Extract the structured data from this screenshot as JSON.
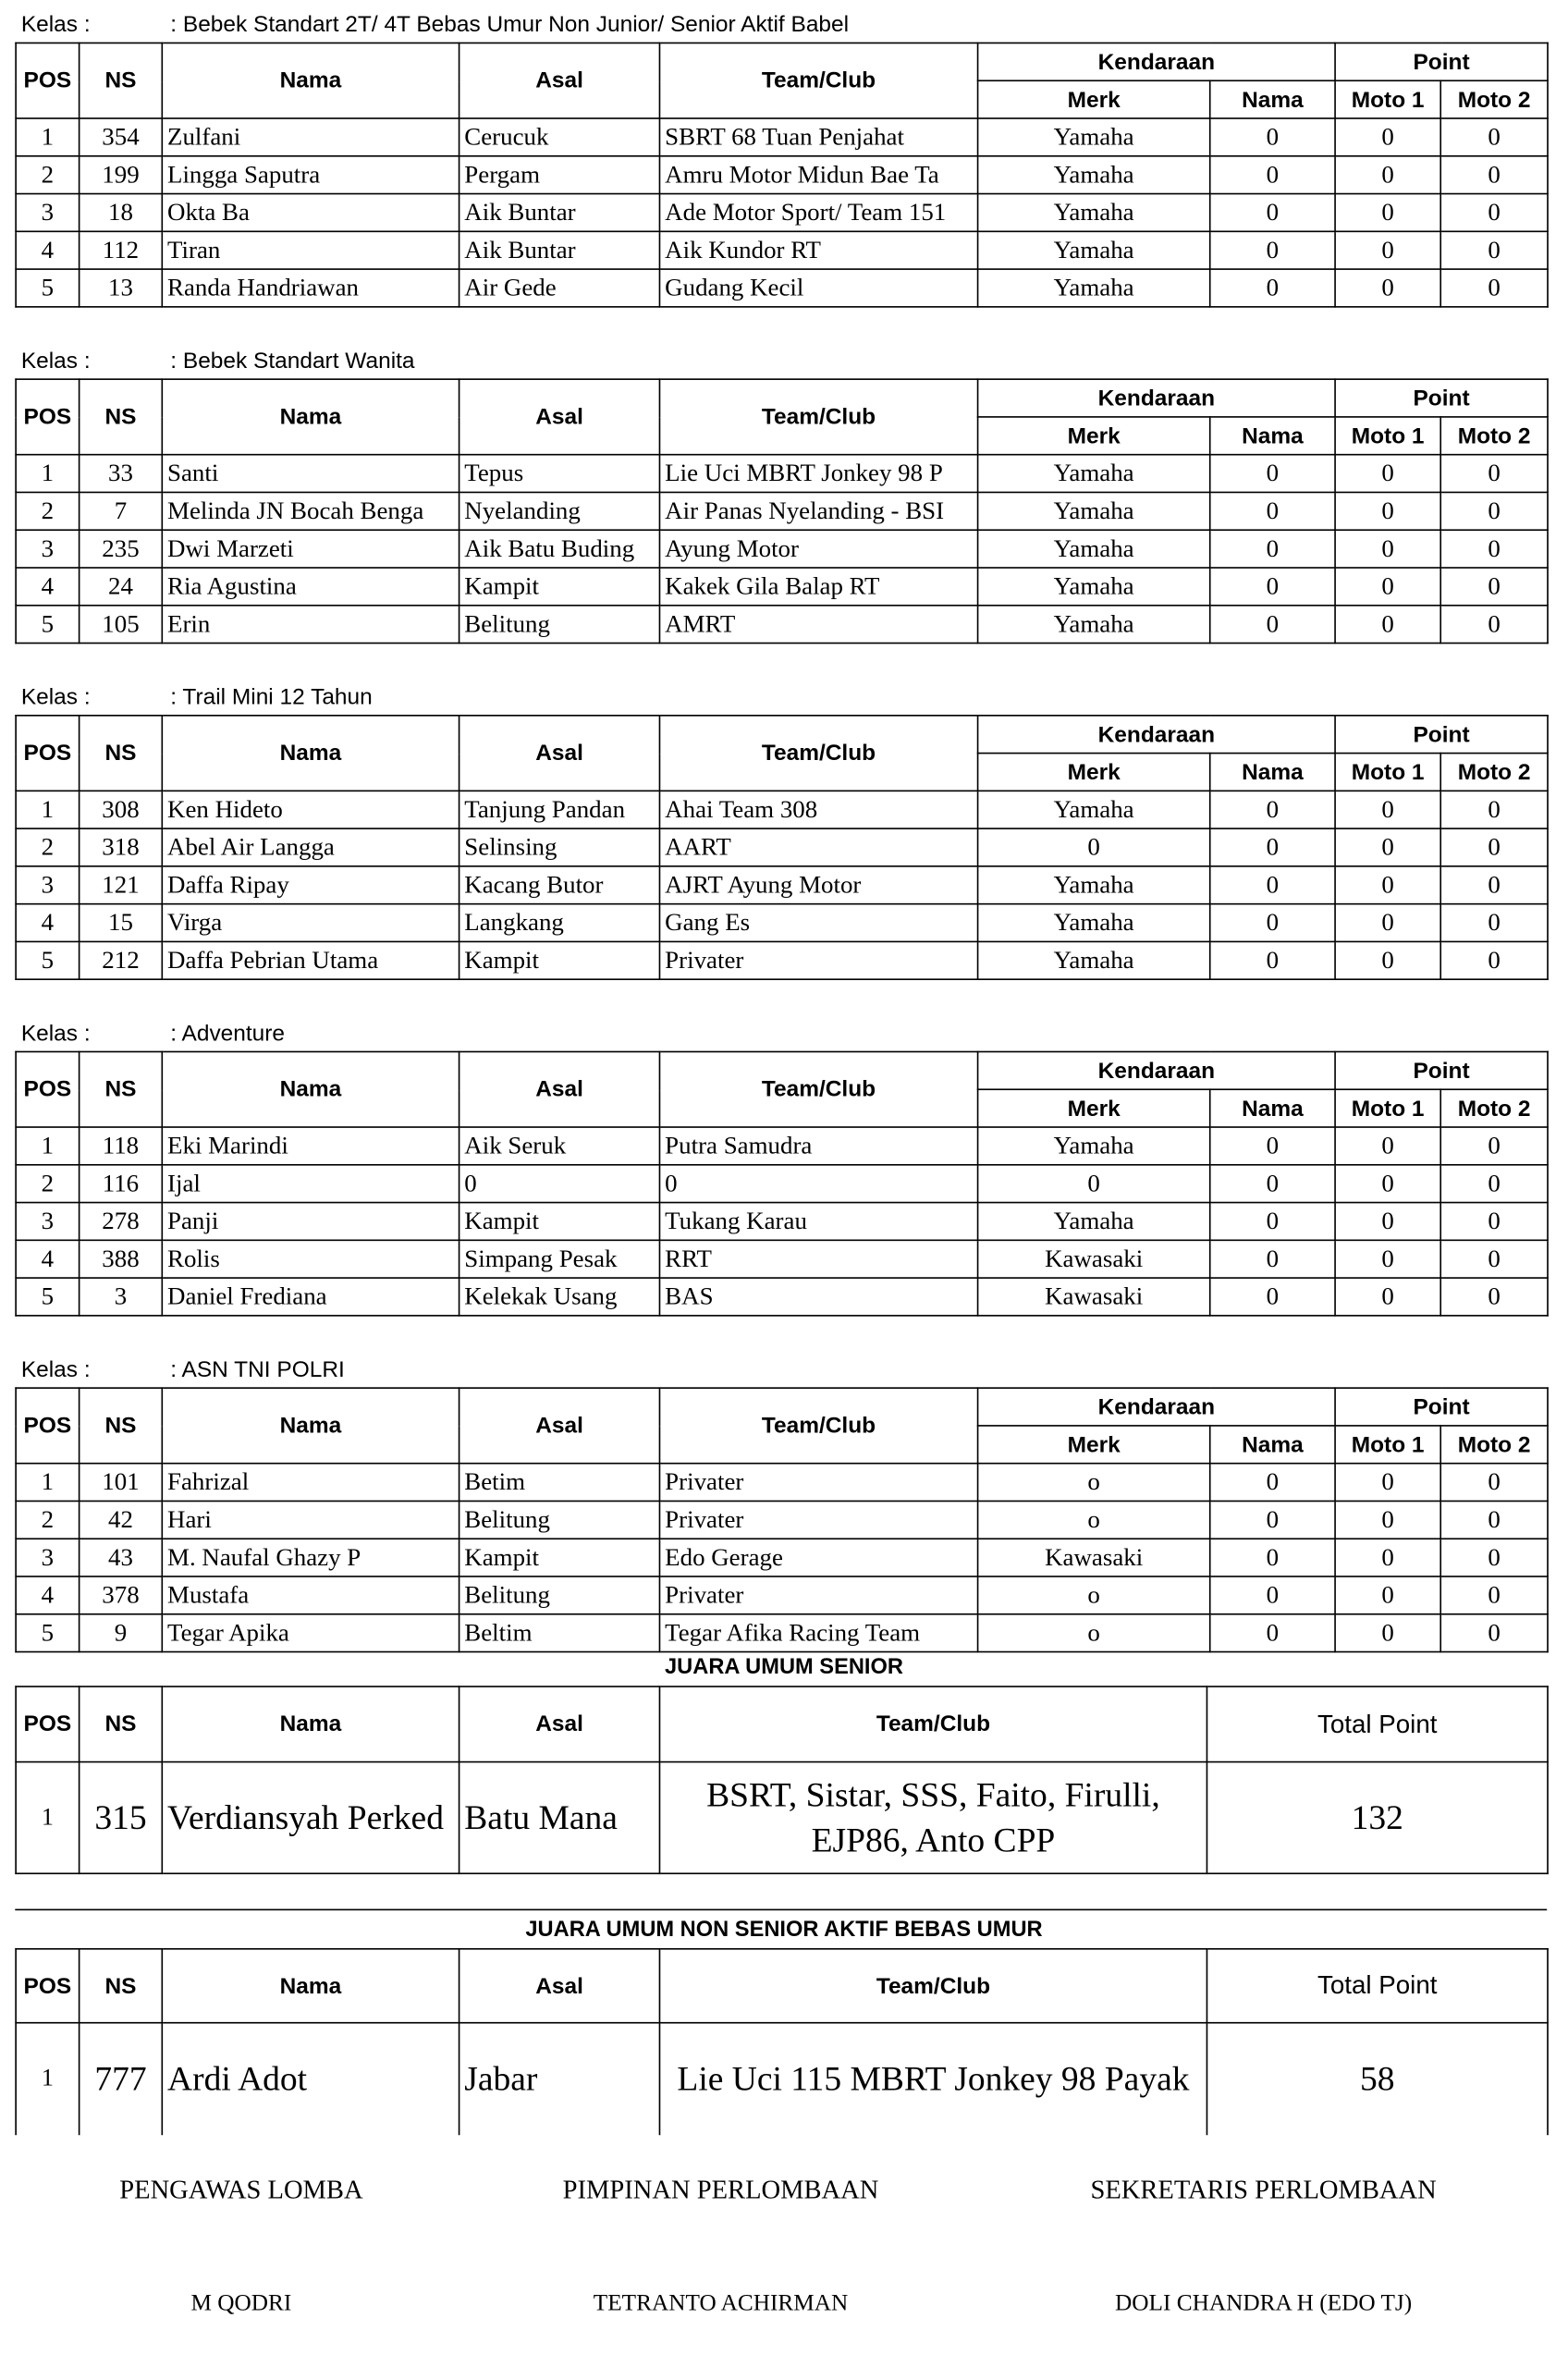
{
  "labels": {
    "kelas": "Kelas :"
  },
  "header": {
    "pos": "POS",
    "ns": "NS",
    "nama": "Nama",
    "asal": "Asal",
    "team": "Team/Club",
    "kendaraan": "Kendaraan",
    "point": "Point",
    "merk": "Merk",
    "nama_kendaraan": "Nama",
    "moto1": "Moto 1",
    "moto2": "Moto 2",
    "total": "Total Point"
  },
  "classes": [
    {
      "name": ": Bebek Standart 2T/ 4T Bebas Umur Non Junior/ Senior Aktif Babel",
      "rows": [
        [
          1,
          354,
          "Zulfani",
          "Cerucuk",
          "SBRT 68 Tuan Penjahat",
          "Yamaha",
          0,
          0,
          0
        ],
        [
          2,
          199,
          "Lingga Saputra",
          "Pergam",
          "Amru Motor Midun Bae Ta",
          "Yamaha",
          0,
          0,
          0
        ],
        [
          3,
          18,
          "Okta Ba",
          "Aik Buntar",
          "Ade Motor Sport/ Team 151",
          "Yamaha",
          0,
          0,
          0
        ],
        [
          4,
          112,
          "Tiran",
          "Aik Buntar",
          "Aik Kundor RT",
          "Yamaha",
          0,
          0,
          0
        ],
        [
          5,
          13,
          "Randa Handriawan",
          "Air Gede",
          "Gudang Kecil",
          "Yamaha",
          0,
          0,
          0
        ]
      ]
    },
    {
      "name": ": Bebek Standart Wanita",
      "rows": [
        [
          1,
          33,
          "Santi",
          "Tepus",
          "Lie Uci MBRT Jonkey 98 P",
          "Yamaha",
          0,
          0,
          0
        ],
        [
          2,
          7,
          "Melinda JN Bocah Benga",
          "Nyelanding",
          "Air Panas Nyelanding - BSI",
          "Yamaha",
          0,
          0,
          0
        ],
        [
          3,
          235,
          "Dwi Marzeti",
          "Aik Batu Buding",
          "Ayung Motor",
          "Yamaha",
          0,
          0,
          0
        ],
        [
          4,
          24,
          "Ria Agustina",
          "Kampit",
          "Kakek Gila Balap RT",
          "Yamaha",
          0,
          0,
          0
        ],
        [
          5,
          105,
          "Erin",
          "Belitung",
          "AMRT",
          "Yamaha",
          0,
          0,
          0
        ]
      ]
    },
    {
      "name": ": Trail Mini 12 Tahun",
      "rows": [
        [
          1,
          308,
          "Ken Hideto",
          "Tanjung Pandan",
          "Ahai Team 308",
          "Yamaha",
          0,
          0,
          0
        ],
        [
          2,
          318,
          "Abel Air Langga",
          "Selinsing",
          "AART",
          0,
          0,
          0,
          0
        ],
        [
          3,
          121,
          "Daffa Ripay",
          "Kacang Butor",
          "AJRT Ayung Motor",
          "Yamaha",
          0,
          0,
          0
        ],
        [
          4,
          15,
          "Virga",
          "Langkang",
          "Gang Es",
          "Yamaha",
          0,
          0,
          0
        ],
        [
          5,
          212,
          "Daffa Pebrian Utama",
          "Kampit",
          "Privater",
          "Yamaha",
          0,
          0,
          0
        ]
      ]
    },
    {
      "name": ": Adventure",
      "rows": [
        [
          1,
          118,
          "Eki Marindi",
          "Aik Seruk",
          "Putra Samudra",
          "Yamaha",
          0,
          0,
          0
        ],
        [
          2,
          116,
          "Ijal",
          0,
          0,
          0,
          0,
          0,
          0
        ],
        [
          3,
          278,
          "Panji",
          "Kampit",
          "Tukang Karau",
          "Yamaha",
          0,
          0,
          0
        ],
        [
          4,
          388,
          "Rolis",
          "Simpang Pesak",
          "RRT",
          "Kawasaki",
          0,
          0,
          0
        ],
        [
          5,
          3,
          "Daniel Frediana",
          "Kelekak Usang",
          "BAS",
          "Kawasaki",
          0,
          0,
          0
        ]
      ]
    },
    {
      "name": ": ASN TNI POLRI",
      "rows": [
        [
          1,
          101,
          "Fahrizal",
          "Betim",
          "Privater",
          "o",
          0,
          0,
          0
        ],
        [
          2,
          42,
          "Hari",
          "Belitung",
          "Privater",
          "o",
          0,
          0,
          0
        ],
        [
          3,
          43,
          "M. Naufal Ghazy P",
          "Kampit",
          "Edo Gerage",
          "Kawasaki",
          0,
          0,
          0
        ],
        [
          4,
          378,
          "Mustafa",
          "Belitung",
          "Privater",
          "o",
          0,
          0,
          0
        ],
        [
          5,
          9,
          "Tegar Apika",
          "Beltim",
          "Tegar Afika Racing Team",
          "o",
          0,
          0,
          0
        ]
      ]
    }
  ],
  "champions": [
    {
      "title": "JUARA UMUM SENIOR",
      "row": [
        1,
        315,
        "Verdiansyah Perked",
        "Batu Mana",
        "BSRT, Sistar, SSS, Faito, Firulli, EJP86, Anto CPP",
        132
      ]
    },
    {
      "title": "JUARA UMUM NON SENIOR AKTIF BEBAS UMUR",
      "row": [
        1,
        777,
        "Ardi Adot",
        "Jabar",
        "Lie Uci 115 MBRT Jonkey 98 Payak",
        58
      ]
    }
  ],
  "signatures": [
    {
      "role": "PENGAWAS LOMBA",
      "name": "M QODRI"
    },
    {
      "role": "PIMPINAN PERLOMBAAN",
      "name": "TETRANTO ACHIRMAN"
    },
    {
      "role": "SEKRETARIS PERLOMBAAN",
      "name": "DOLI CHANDRA H (EDO TJ)"
    }
  ]
}
